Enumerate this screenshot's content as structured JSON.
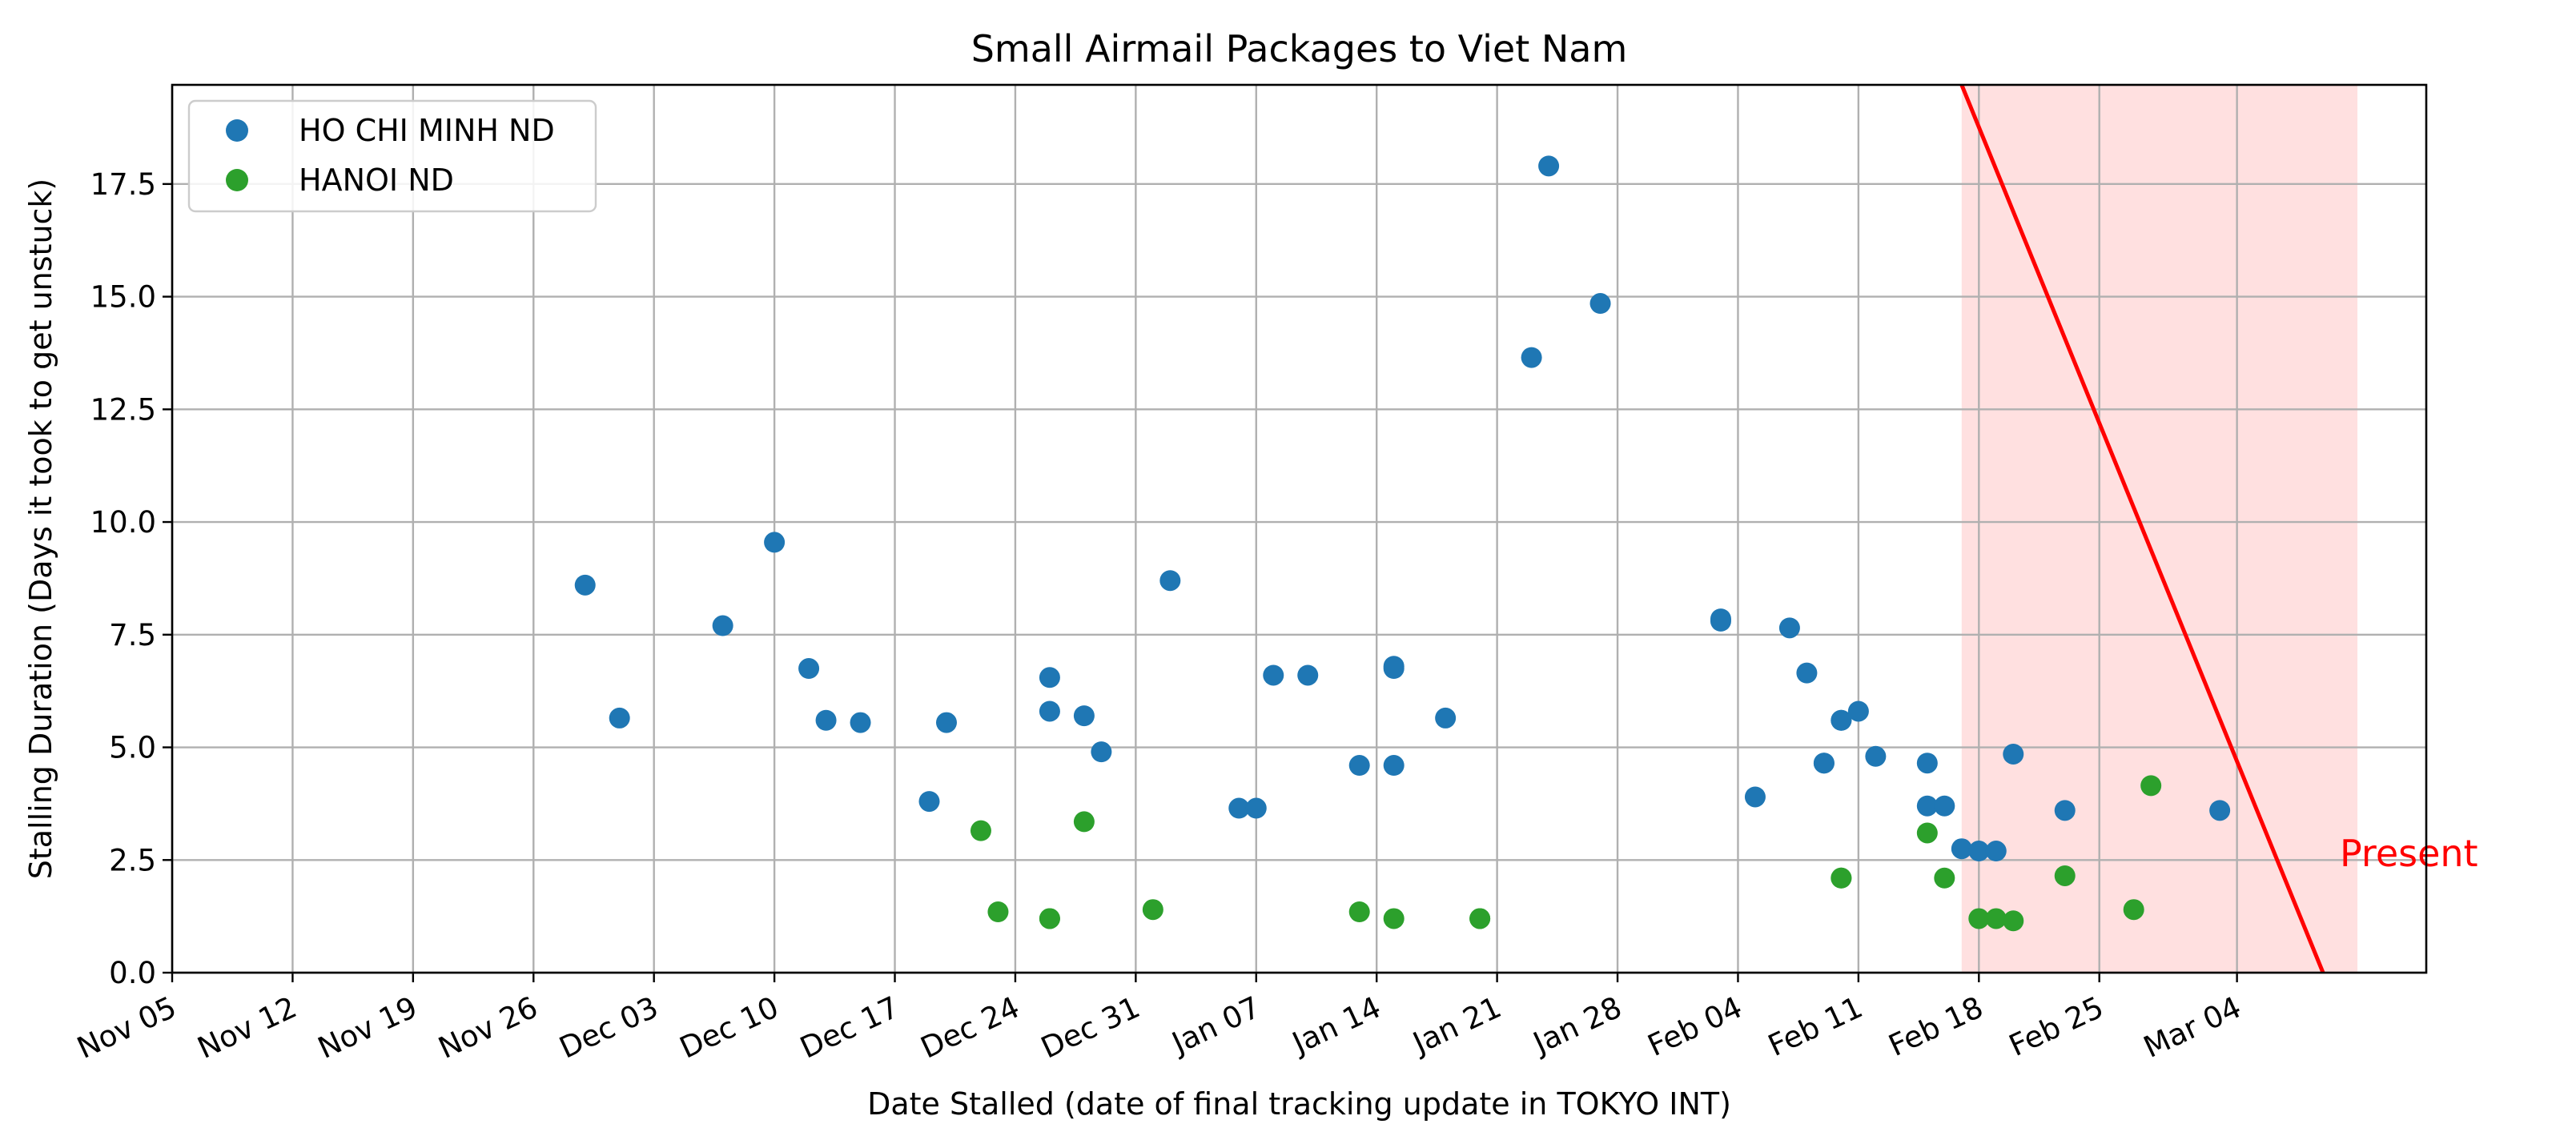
{
  "chart_data": {
    "type": "scatter",
    "title": "Small Airmail Packages to Viet Nam",
    "xlabel": "Date Stalled (date of final tracking update in TOKYO INT)",
    "ylabel": "Stalling Duration (Days it took to get unstuck)",
    "xlim": [
      "2023-11-05",
      "2024-03-15"
    ],
    "ylim": [
      0,
      19.7
    ],
    "x_ticks": [
      "2023-11-05",
      "2023-11-12",
      "2023-11-19",
      "2023-11-26",
      "2023-12-03",
      "2023-12-10",
      "2023-12-17",
      "2023-12-24",
      "2023-12-31",
      "2024-01-07",
      "2024-01-14",
      "2024-01-21",
      "2024-01-28",
      "2024-02-04",
      "2024-02-11",
      "2024-02-18",
      "2024-02-25",
      "2024-03-04"
    ],
    "x_tick_labels": [
      "Nov 05",
      "Nov 12",
      "Nov 19",
      "Nov 26",
      "Dec 03",
      "Dec 10",
      "Dec 17",
      "Dec 24",
      "Dec 31",
      "Jan 07",
      "Jan 14",
      "Jan 21",
      "Jan 28",
      "Feb 04",
      "Feb 11",
      "Feb 18",
      "Feb 25",
      "Mar 04"
    ],
    "y_ticks": [
      0,
      2.5,
      5,
      7.5,
      10,
      12.5,
      15,
      17.5
    ],
    "y_tick_labels": [
      "0.0",
      "2.5",
      "5.0",
      "7.5",
      "10.0",
      "12.5",
      "15.0",
      "17.5"
    ],
    "grid": true,
    "legend_position": "top-left",
    "series": [
      {
        "name": "HO CHI MINH ND",
        "color": "#1f77b4",
        "points": [
          [
            "2023-11-29",
            8.6
          ],
          [
            "2023-12-01",
            5.65
          ],
          [
            "2023-12-07",
            7.7
          ],
          [
            "2023-12-10",
            9.55
          ],
          [
            "2023-12-12",
            6.75
          ],
          [
            "2023-12-13",
            5.6
          ],
          [
            "2023-12-15",
            5.55
          ],
          [
            "2023-12-19",
            3.8
          ],
          [
            "2023-12-20",
            5.55
          ],
          [
            "2023-12-26",
            5.8
          ],
          [
            "2023-12-26",
            6.55
          ],
          [
            "2023-12-28",
            5.7
          ],
          [
            "2023-12-29",
            4.9
          ],
          [
            "2024-01-02",
            8.7
          ],
          [
            "2024-01-06",
            3.65
          ],
          [
            "2024-01-07",
            3.65
          ],
          [
            "2024-01-08",
            6.6
          ],
          [
            "2024-01-10",
            6.6
          ],
          [
            "2024-01-13",
            4.6
          ],
          [
            "2024-01-15",
            4.6
          ],
          [
            "2024-01-15",
            6.8
          ],
          [
            "2024-01-15",
            6.75
          ],
          [
            "2024-01-18",
            5.65
          ],
          [
            "2024-01-23",
            13.65
          ],
          [
            "2024-01-24",
            17.9
          ],
          [
            "2024-01-27",
            14.85
          ],
          [
            "2024-02-03",
            7.8
          ],
          [
            "2024-02-03",
            7.85
          ],
          [
            "2024-02-05",
            3.9
          ],
          [
            "2024-02-07",
            7.65
          ],
          [
            "2024-02-08",
            6.65
          ],
          [
            "2024-02-09",
            4.65
          ],
          [
            "2024-02-09",
            4.65
          ],
          [
            "2024-02-10",
            5.6
          ],
          [
            "2024-02-10",
            5.6
          ],
          [
            "2024-02-11",
            5.8
          ],
          [
            "2024-02-12",
            4.8
          ],
          [
            "2024-02-15",
            4.65
          ],
          [
            "2024-02-15",
            3.7
          ],
          [
            "2024-02-16",
            3.7
          ],
          [
            "2024-02-17",
            2.75
          ],
          [
            "2024-02-18",
            2.7
          ],
          [
            "2024-02-19",
            2.7
          ],
          [
            "2024-02-20",
            4.85
          ],
          [
            "2024-02-23",
            3.6
          ],
          [
            "2024-03-03",
            3.6
          ]
        ]
      },
      {
        "name": "HANOI ND",
        "color": "#2ca02c",
        "points": [
          [
            "2023-12-22",
            3.15
          ],
          [
            "2023-12-23",
            1.35
          ],
          [
            "2023-12-26",
            1.2
          ],
          [
            "2023-12-26",
            1.2
          ],
          [
            "2023-12-28",
            3.35
          ],
          [
            "2024-01-01",
            1.4
          ],
          [
            "2024-01-13",
            1.35
          ],
          [
            "2024-01-15",
            1.2
          ],
          [
            "2024-01-20",
            1.2
          ],
          [
            "2024-01-20",
            1.2
          ],
          [
            "2024-02-10",
            2.1
          ],
          [
            "2024-02-10",
            2.1
          ],
          [
            "2024-02-15",
            3.1
          ],
          [
            "2024-02-16",
            2.1
          ],
          [
            "2024-02-18",
            1.2
          ],
          [
            "2024-02-19",
            1.2
          ],
          [
            "2024-02-20",
            1.15
          ],
          [
            "2024-02-23",
            2.15
          ],
          [
            "2024-02-27",
            1.4
          ],
          [
            "2024-02-28",
            4.15
          ]
        ]
      }
    ],
    "cutoff": {
      "line_color": "#ff0000",
      "shade_color": "#ffe0e0",
      "line": [
        [
          "2024-02-17",
          19.7
        ],
        [
          "2024-03-09",
          0
        ]
      ],
      "shade_x": [
        "2024-02-17",
        "2024-03-11"
      ],
      "label": "Present"
    }
  }
}
